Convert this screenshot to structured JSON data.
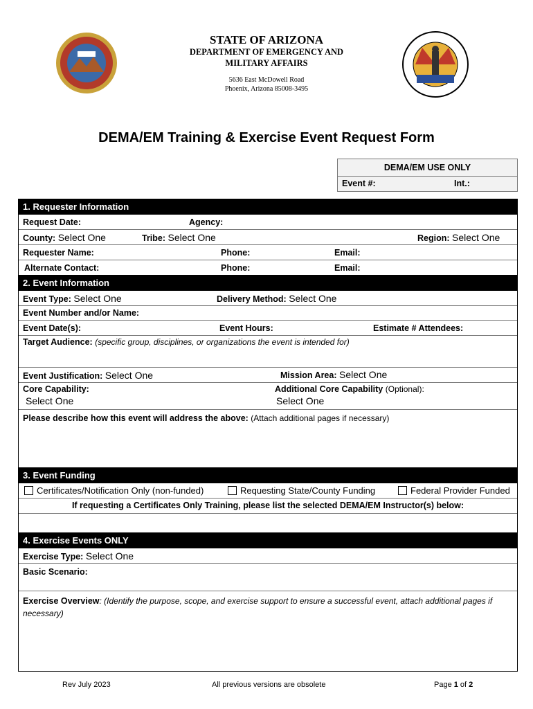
{
  "header": {
    "state": "STATE OF ARIZONA",
    "department": "DEPARTMENT OF EMERGENCY AND",
    "department2": "MILITARY AFFAIRS",
    "address1": "5636 East McDowell Road",
    "address2": "Phoenix, Arizona 85008-3495",
    "seal_left_text": "GREAT SEAL OF THE STATE OF ARIZONA · DITAT DEUS · 1912",
    "seal_right_text": "Arizona Department of Emergency and Military Affairs"
  },
  "title": "DEMA/EM Training & Exercise Event Request Form",
  "use_only": {
    "heading": "DEMA/EM USE ONLY",
    "event_no": "Event #:",
    "int": "Int.:"
  },
  "s1": {
    "title": "1.  Requester Information",
    "request_date": "Request Date:",
    "agency": "Agency:",
    "county": "County:",
    "tribe": "Tribe:",
    "region": "Region:",
    "select": "Select One",
    "requester": "Requester  Name:",
    "phone": "Phone:",
    "email": "Email:",
    "alternate": "Alternate  Contact:"
  },
  "s2": {
    "title": "2. Event Information",
    "event_type": "Event Type:",
    "delivery": "Delivery Method:",
    "select": "Select One",
    "event_name": "Event Number and/or Name:",
    "dates": "Event Date(s):",
    "hours": "Event Hours:",
    "attendees": "Estimate # Attendees:",
    "target": "Target Audience:",
    "target_hint": "(specific group, disciplines, or organizations the event is intended for)",
    "justification": "Event Justification:",
    "mission": "Mission Area:",
    "core": "Core Capability:",
    "add_core": "Additional Core Capability",
    "optional": "(Optional):",
    "describe": "Please describe how this event will address the above:",
    "describe_hint": "(Attach additional pages if necessary)"
  },
  "s3": {
    "title": "3. Event Funding",
    "opt1": "Certificates/Notification Only (non-funded)",
    "opt2": "Requesting State/County Funding",
    "opt3": "Federal Provider Funded",
    "instructors": "If requesting a Certificates Only Training, please list the selected DEMA/EM Instructor(s) below:"
  },
  "s4": {
    "title": "4. Exercise Events ONLY",
    "type": "Exercise Type:",
    "select": "Select One",
    "scenario": "Basic Scenario:",
    "overview": "Exercise Overview",
    "overview_hint": ": (Identify the purpose, scope, and exercise support to ensure a successful event, attach additional pages if necessary)"
  },
  "footer": {
    "rev": "Rev July 2023",
    "obsolete": "All previous versions are obsolete",
    "page_prefix": "Page ",
    "page": "1",
    "of": " of ",
    "total": "2"
  }
}
